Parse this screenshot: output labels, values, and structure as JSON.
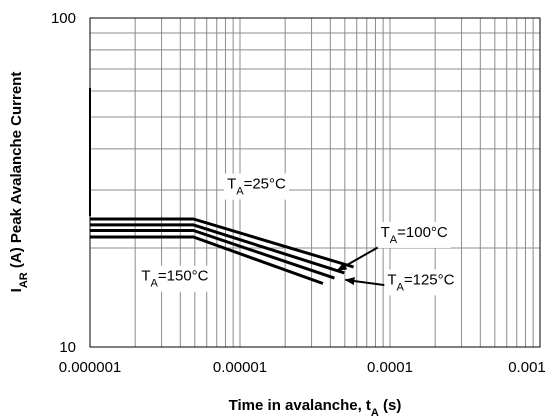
{
  "chart_data": {
    "type": "line",
    "x_scale": "log",
    "y_scale": "log",
    "xlim": [
      1e-06,
      0.001
    ],
    "ylim": [
      10,
      100
    ],
    "grid": true,
    "x_ticks": [
      {
        "value": 1e-06,
        "label": "0.000001"
      },
      {
        "value": 1e-05,
        "label": "0.00001"
      },
      {
        "value": 0.0001,
        "label": "0.0001"
      },
      {
        "value": 0.001,
        "label": "0.001"
      }
    ],
    "y_ticks": [
      {
        "value": 10,
        "label": "10"
      },
      {
        "value": 100,
        "label": "100"
      }
    ],
    "xlabel": {
      "main": "Time in avalanche, t",
      "sub": "A",
      "suffix": " (s)"
    },
    "ylabel": {
      "pre": "I",
      "sub": "AR",
      "suffix": " (A) Peak Avalanche Current"
    },
    "series": [
      {
        "name": "25",
        "points": [
          [
            1e-06,
            24.5
          ],
          [
            4.9e-06,
            24.5
          ],
          [
            5.72e-05,
            17.5
          ]
        ]
      },
      {
        "name": "100",
        "points": [
          [
            1e-06,
            23.5
          ],
          [
            4.9e-06,
            23.5
          ],
          [
            4.96e-05,
            16.8
          ]
        ]
      },
      {
        "name": "125",
        "points": [
          [
            1e-06,
            22.6
          ],
          [
            4.9e-06,
            22.6
          ],
          [
            4.26e-05,
            16.2
          ]
        ]
      },
      {
        "name": "150",
        "points": [
          [
            1e-06,
            21.6
          ],
          [
            4.9e-06,
            21.6
          ],
          [
            3.57e-05,
            15.6
          ]
        ]
      }
    ],
    "annotations": [
      {
        "series": "25",
        "pre": "T",
        "sub": "A",
        "label": "=25°C",
        "label_x": 8.2e-06,
        "label_y": 30.3,
        "arrow": false
      },
      {
        "series": "100",
        "pre": "T",
        "sub": "A",
        "label": "=100°C",
        "label_x": 8.66e-05,
        "label_y": 21.6,
        "arrow_from": [
          8.66e-05,
          20.3
        ],
        "arrow_to": [
          4.47e-05,
          17.1
        ]
      },
      {
        "series": "125",
        "pre": "T",
        "sub": "A",
        "label": "=125°C",
        "label_x": 9.6e-05,
        "label_y": 15.5,
        "arrow_from": [
          9.4e-05,
          15.4
        ],
        "arrow_to": [
          5.05e-05,
          16.0
        ]
      },
      {
        "series": "150",
        "pre": "T",
        "sub": "A",
        "label": "=150°C",
        "label_x": 2.2e-06,
        "label_y": 15.9,
        "arrow": false
      }
    ]
  }
}
